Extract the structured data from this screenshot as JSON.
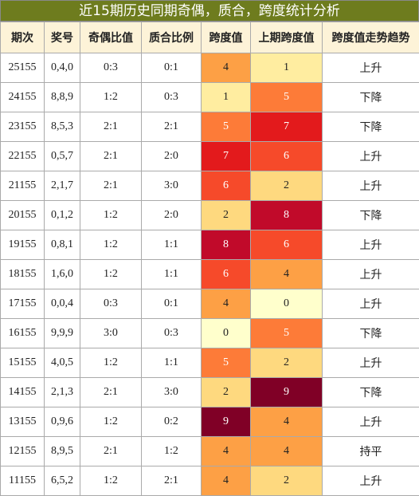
{
  "header": {
    "title": "近15期历史同期奇偶，质合，跨度统计分析"
  },
  "table": {
    "columns": [
      "期次",
      "奖号",
      "奇偶比值",
      "质合比例",
      "跨度值",
      "上期跨度值",
      "跨度值走势趋势"
    ],
    "rows": [
      [
        "25155",
        "0,4,0",
        "0:3",
        "0:1",
        "4",
        "1",
        "上升"
      ],
      [
        "24155",
        "8,8,9",
        "1:2",
        "0:3",
        "1",
        "5",
        "下降"
      ],
      [
        "23155",
        "8,5,3",
        "2:1",
        "2:1",
        "5",
        "7",
        "下降"
      ],
      [
        "22155",
        "0,5,7",
        "2:1",
        "2:0",
        "7",
        "6",
        "上升"
      ],
      [
        "21155",
        "2,1,7",
        "2:1",
        "3:0",
        "6",
        "2",
        "上升"
      ],
      [
        "20155",
        "0,1,2",
        "1:2",
        "2:0",
        "2",
        "8",
        "下降"
      ],
      [
        "19155",
        "0,8,1",
        "1:2",
        "1:1",
        "8",
        "6",
        "上升"
      ],
      [
        "18155",
        "1,6,0",
        "1:2",
        "1:1",
        "6",
        "4",
        "上升"
      ],
      [
        "17155",
        "0,0,4",
        "0:3",
        "0:1",
        "4",
        "0",
        "上升"
      ],
      [
        "16155",
        "9,9,9",
        "3:0",
        "0:3",
        "0",
        "5",
        "下降"
      ],
      [
        "15155",
        "4,0,5",
        "1:2",
        "1:1",
        "5",
        "2",
        "上升"
      ],
      [
        "14155",
        "2,1,3",
        "2:1",
        "3:0",
        "2",
        "9",
        "下降"
      ],
      [
        "13155",
        "0,9,6",
        "1:2",
        "0:2",
        "9",
        "4",
        "上升"
      ],
      [
        "12155",
        "8,9,5",
        "2:1",
        "1:2",
        "4",
        "4",
        "持平"
      ],
      [
        "11155",
        "6,5,2",
        "1:2",
        "2:1",
        "4",
        "2",
        "上升"
      ]
    ]
  }
}
